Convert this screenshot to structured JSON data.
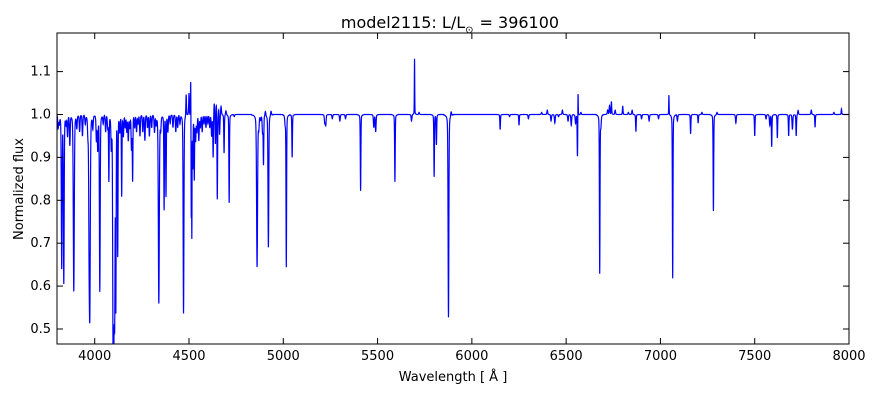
{
  "chart_data": {
    "type": "line",
    "title_main": "model2115: L/L",
    "title_sub": "⊙",
    "title_value": "= 396100",
    "xlabel": "Wavelength [ Å ]",
    "ylabel": "Normalized flux",
    "xlim": [
      3800,
      8000
    ],
    "ylim": [
      0.465,
      1.19
    ],
    "xticks": [
      4000,
      4500,
      5000,
      5500,
      6000,
      6500,
      7000,
      7500,
      8000
    ],
    "yticks": [
      0.5,
      0.6,
      0.7,
      0.8,
      0.9,
      1.0,
      1.1
    ],
    "line_color": "#0000ff",
    "continuum": 1.0,
    "series": [
      {
        "name": "spectrum",
        "features": [
          [
            3806,
            0.97,
            2
          ],
          [
            3812,
            0.98,
            2
          ],
          [
            3825,
            0.645,
            2
          ],
          [
            3836,
            0.61,
            2
          ],
          [
            3848,
            0.98,
            2
          ],
          [
            3856,
            0.95,
            2
          ],
          [
            3868,
            0.93,
            2
          ],
          [
            3889,
            0.588,
            2.5
          ],
          [
            3905,
            0.97,
            2
          ],
          [
            3920,
            0.96,
            2
          ],
          [
            3935,
            0.95,
            2
          ],
          [
            3950,
            0.98,
            2
          ],
          [
            3964,
            0.96,
            2
          ],
          [
            3970,
            0.78,
            2
          ],
          [
            3974,
            0.56,
            2.5
          ],
          [
            3990,
            0.97,
            2
          ],
          [
            4009,
            0.94,
            2
          ],
          [
            4016,
            0.92,
            2
          ],
          [
            4027,
            0.588,
            2
          ],
          [
            4045,
            0.98,
            2
          ],
          [
            4058,
            0.96,
            2
          ],
          [
            4069,
            0.97,
            2
          ],
          [
            4075,
            0.848,
            1.5
          ],
          [
            4088,
            0.93,
            2
          ],
          [
            4097,
            0.6,
            2
          ],
          [
            4101,
            0.544,
            2.5
          ],
          [
            4106,
            0.6,
            2
          ],
          [
            4112,
            0.57,
            1.5
          ],
          [
            4122,
            0.677,
            1.5
          ],
          [
            4133,
            0.96,
            2
          ],
          [
            4143,
            0.81,
            1.5
          ],
          [
            4152,
            0.95,
            2
          ],
          [
            4162,
            0.97,
            2
          ],
          [
            4170,
            0.96,
            2
          ],
          [
            4178,
            0.94,
            2
          ],
          [
            4186,
            0.97,
            2
          ],
          [
            4195,
            0.92,
            2
          ],
          [
            4201,
            0.848,
            1.5
          ],
          [
            4212,
            0.97,
            2
          ],
          [
            4222,
            0.96,
            2
          ],
          [
            4230,
            0.98,
            2
          ],
          [
            4240,
            0.95,
            2
          ],
          [
            4255,
            0.96,
            2
          ],
          [
            4266,
            0.94,
            2
          ],
          [
            4280,
            0.97,
            2
          ],
          [
            4290,
            0.95,
            2
          ],
          [
            4302,
            0.97,
            2
          ],
          [
            4317,
            0.96,
            2
          ],
          [
            4326,
            0.98,
            2
          ],
          [
            4340,
            0.56,
            2.5
          ],
          [
            4350,
            0.97,
            2
          ],
          [
            4368,
            0.78,
            1.5
          ],
          [
            4378,
            0.81,
            1.5
          ],
          [
            4388,
            0.96,
            2
          ],
          [
            4400,
            0.98,
            2
          ],
          [
            4415,
            0.97,
            2
          ],
          [
            4430,
            0.96,
            2
          ],
          [
            4440,
            0.97,
            2
          ],
          [
            4452,
            0.98,
            2
          ],
          [
            4471,
            0.536,
            2
          ],
          [
            4485,
            1.05,
            1.5
          ],
          [
            4500,
            1.05,
            1.5
          ],
          [
            4509,
            1.09,
            1
          ],
          [
            4512,
            0.77,
            1
          ],
          [
            4515,
            0.725,
            1
          ],
          [
            4520,
            0.88,
            1.5
          ],
          [
            4528,
            0.85,
            1.5
          ],
          [
            4535,
            0.94,
            2
          ],
          [
            4542,
            0.96,
            2
          ],
          [
            4552,
            0.94,
            2
          ],
          [
            4560,
            0.97,
            2
          ],
          [
            4570,
            0.96,
            2
          ],
          [
            4580,
            0.98,
            2
          ],
          [
            4590,
            0.97,
            2
          ],
          [
            4600,
            0.98,
            2
          ],
          [
            4610,
            0.97,
            2
          ],
          [
            4620,
            0.95,
            2
          ],
          [
            4628,
            0.9,
            1.5
          ],
          [
            4634,
            1.03,
            2
          ],
          [
            4640,
            0.93,
            1.5
          ],
          [
            4645,
            1.03,
            2
          ],
          [
            4650,
            0.8,
            1.5
          ],
          [
            4658,
            1.02,
            2
          ],
          [
            4662,
            0.95,
            2
          ],
          [
            4670,
            1.02,
            2
          ],
          [
            4686,
            0.91,
            1.5
          ],
          [
            4696,
            1.01,
            2
          ],
          [
            4713,
            0.794,
            1.5
          ],
          [
            4740,
            0.995,
            2
          ],
          [
            4861,
            0.645,
            2.5
          ],
          [
            4870,
            0.97,
            2
          ],
          [
            4880,
            0.99,
            2
          ],
          [
            4890,
            0.96,
            2
          ],
          [
            4895,
            0.885,
            1.5
          ],
          [
            4905,
            1.01,
            2
          ],
          [
            4921,
            0.69,
            2
          ],
          [
            4935,
            1.01,
            2
          ],
          [
            5010,
            0.98,
            2
          ],
          [
            5016,
            0.645,
            1.5
          ],
          [
            5047,
            0.9,
            1.5
          ],
          [
            5220,
            0.98,
            2
          ],
          [
            5225,
            0.975,
            2
          ],
          [
            5260,
            0.99,
            2
          ],
          [
            5300,
            0.985,
            2
          ],
          [
            5330,
            0.99,
            2
          ],
          [
            5410,
            0.822,
            1.5
          ],
          [
            5480,
            0.97,
            2
          ],
          [
            5490,
            0.96,
            2
          ],
          [
            5592,
            0.843,
            1.5
          ],
          [
            5680,
            0.985,
            2
          ],
          [
            5696,
            1.13,
            1
          ],
          [
            5720,
            1.005,
            2
          ],
          [
            5800,
            0.855,
            1.5
          ],
          [
            5812,
            0.93,
            1.5
          ],
          [
            5876,
            0.527,
            2
          ],
          [
            5890,
            1.01,
            2
          ],
          [
            6150,
            0.965,
            1.5
          ],
          [
            6200,
            0.995,
            2
          ],
          [
            6250,
            0.975,
            1.5
          ],
          [
            6300,
            0.99,
            2
          ],
          [
            6370,
            1.005,
            2
          ],
          [
            6400,
            1.01,
            2
          ],
          [
            6420,
            0.985,
            2
          ],
          [
            6440,
            0.98,
            2
          ],
          [
            6460,
            0.995,
            2
          ],
          [
            6480,
            1.01,
            2
          ],
          [
            6510,
            0.985,
            2
          ],
          [
            6527,
            0.975,
            2
          ],
          [
            6550,
            0.98,
            2
          ],
          [
            6560,
            0.9,
            1.5
          ],
          [
            6563,
            1.065,
            1
          ],
          [
            6578,
            1.005,
            2
          ],
          [
            6678,
            0.63,
            1.5
          ],
          [
            6684,
            0.975,
            2
          ],
          [
            6720,
            1.01,
            2
          ],
          [
            6730,
            1.02,
            2
          ],
          [
            6740,
            1.03,
            1.5
          ],
          [
            6760,
            1.01,
            2
          ],
          [
            6800,
            1.02,
            1.5
          ],
          [
            6830,
            1.005,
            2
          ],
          [
            6850,
            1.01,
            2
          ],
          [
            6870,
            0.96,
            1.5
          ],
          [
            6900,
            0.99,
            2
          ],
          [
            6940,
            0.985,
            2
          ],
          [
            6990,
            0.99,
            2
          ],
          [
            7045,
            1.045,
            1
          ],
          [
            7065,
            0.618,
            1.5
          ],
          [
            7090,
            0.985,
            2
          ],
          [
            7160,
            0.955,
            1.5
          ],
          [
            7200,
            0.98,
            1.5
          ],
          [
            7220,
            1.005,
            2
          ],
          [
            7281,
            0.775,
            1.5
          ],
          [
            7300,
            1.005,
            2
          ],
          [
            7400,
            0.98,
            2
          ],
          [
            7500,
            0.95,
            1.5
          ],
          [
            7560,
            0.99,
            2
          ],
          [
            7580,
            0.975,
            2
          ],
          [
            7590,
            0.925,
            1.5
          ],
          [
            7620,
            0.945,
            1.5
          ],
          [
            7680,
            0.95,
            1.5
          ],
          [
            7700,
            0.965,
            2
          ],
          [
            7720,
            0.95,
            1.5
          ],
          [
            7730,
            1.01,
            2
          ],
          [
            7800,
            1.01,
            2
          ],
          [
            7820,
            0.97,
            1.5
          ],
          [
            7920,
            1.005,
            2
          ],
          [
            7960,
            1.013,
            1.5
          ]
        ]
      }
    ]
  }
}
